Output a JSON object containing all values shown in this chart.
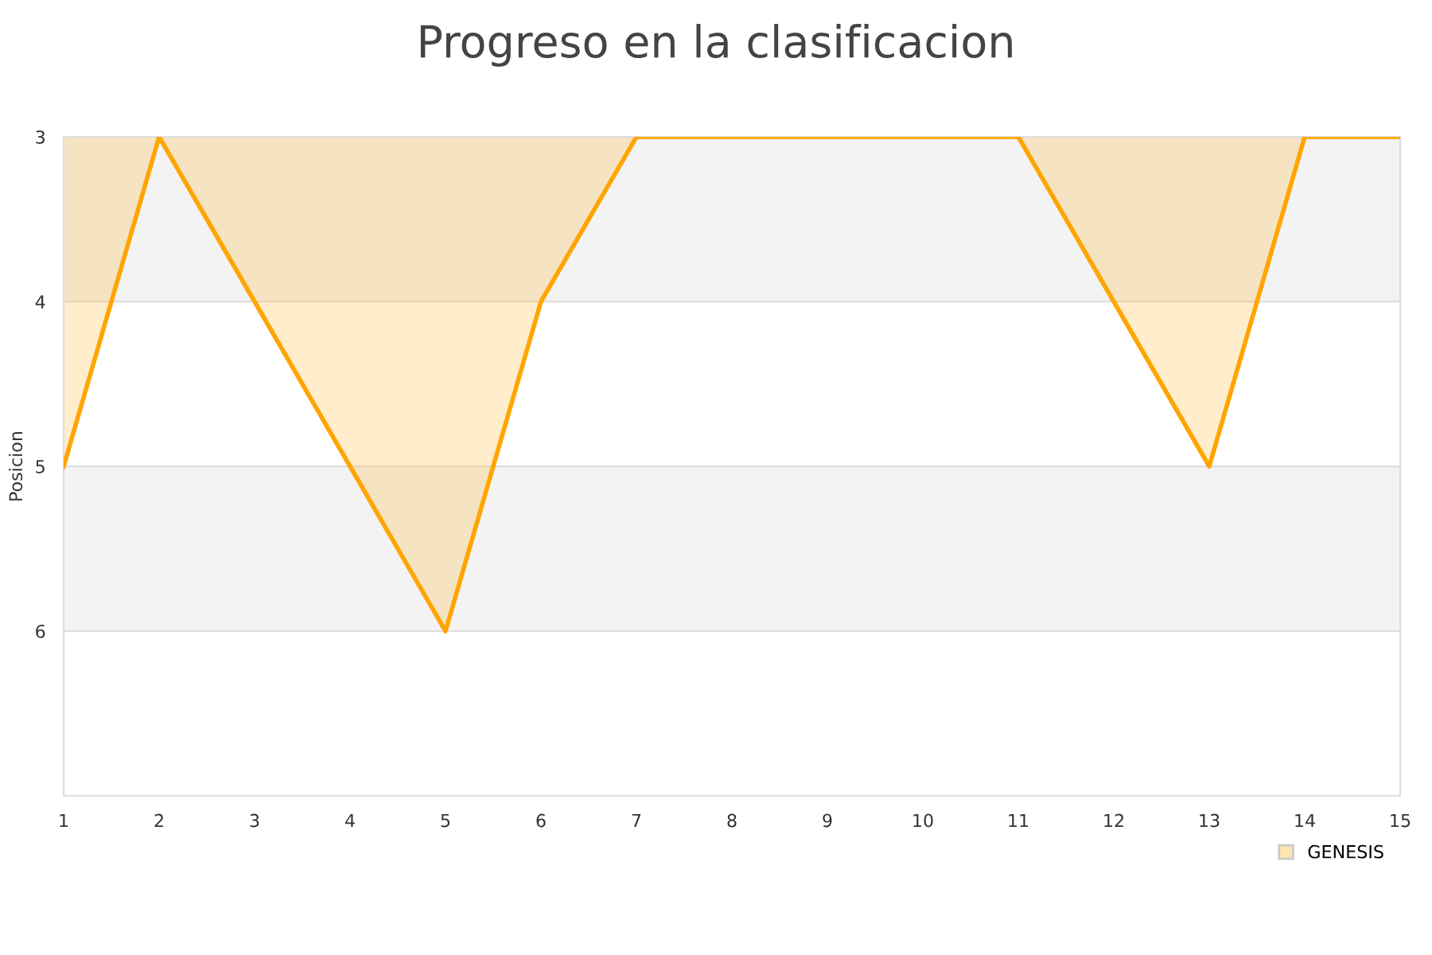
{
  "chart_data": {
    "type": "area",
    "title": "Progreso en la clasificacion",
    "ylabel": "Posicion",
    "x": [
      1,
      2,
      3,
      4,
      5,
      6,
      7,
      8,
      9,
      10,
      11,
      12,
      13,
      14,
      15
    ],
    "series": [
      {
        "name": "GENESIS",
        "color": "#ffa500",
        "values": [
          5,
          3,
          4,
          5,
          6,
          4,
          3,
          3,
          3,
          3,
          3,
          4,
          5,
          3,
          3
        ]
      }
    ],
    "xlim": [
      1,
      15
    ],
    "xticks": [
      1,
      2,
      3,
      4,
      5,
      6,
      7,
      8,
      9,
      10,
      11,
      12,
      13,
      14,
      15
    ],
    "ylim": [
      7,
      3
    ],
    "yticks": [
      3,
      4,
      5,
      6
    ],
    "bands": [
      {
        "axis": "y",
        "from": 3,
        "to": 4,
        "color": "#f3f3f3"
      },
      {
        "axis": "y",
        "from": 5,
        "to": 6,
        "color": "#f3f3f3"
      }
    ],
    "grid": "y",
    "legend": "bottom right"
  }
}
